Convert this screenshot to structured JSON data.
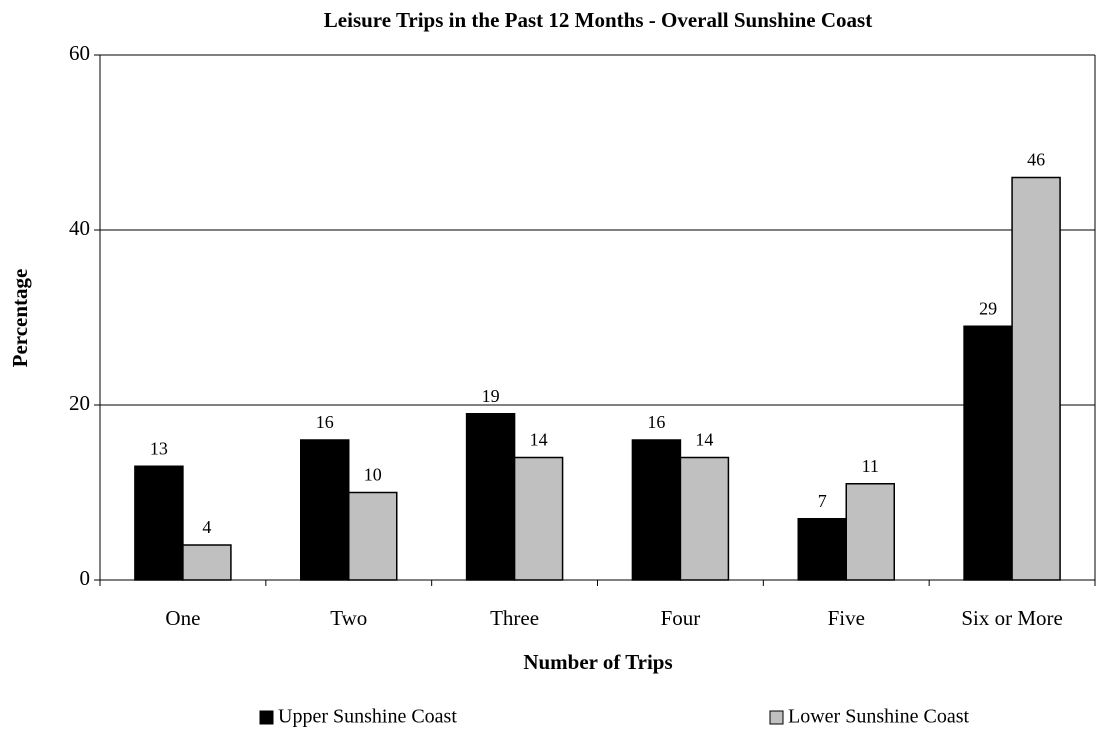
{
  "chart_data": {
    "type": "bar",
    "title": "Leisure Trips in the Past 12 Months - Overall Sunshine Coast",
    "x_label": "Number of Trips",
    "y_label": "Percentage",
    "categories": [
      "One",
      "Two",
      "Three",
      "Four",
      "Five",
      "Six or More"
    ],
    "series": [
      {
        "name": "Upper Sunshine Coast",
        "color": "#000000",
        "values": [
          13,
          16,
          19,
          16,
          7,
          29
        ]
      },
      {
        "name": "Lower Sunshine Coast",
        "color": "#c0c0c0",
        "values": [
          4,
          10,
          14,
          14,
          11,
          46
        ]
      }
    ],
    "ylim": [
      0,
      60
    ],
    "yticks": [
      0,
      20,
      40,
      60
    ],
    "grid": true,
    "legend": "bottom"
  }
}
